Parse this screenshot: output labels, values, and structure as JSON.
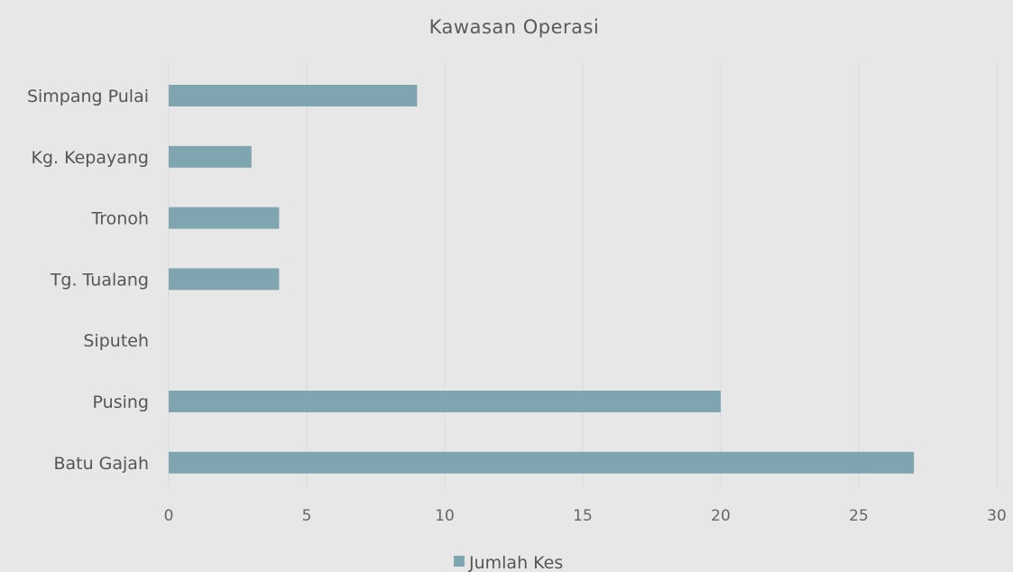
{
  "chart_data": {
    "type": "bar",
    "orientation": "horizontal",
    "title": "Kawasan Operasi",
    "categories": [
      "Simpang Pulai",
      "Kg. Kepayang",
      "Tronoh",
      "Tg. Tualang",
      "Siputeh",
      "Pusing",
      "Batu Gajah"
    ],
    "series": [
      {
        "name": "Jumlah Kes",
        "values": [
          9,
          3,
          4,
          4,
          0,
          20,
          27
        ]
      }
    ],
    "xlim": [
      0,
      30
    ],
    "x_ticks": [
      "0",
      "5",
      "10",
      "15",
      "20",
      "25",
      "30"
    ],
    "grid": true,
    "legend_position": "bottom",
    "bar_color": "#7fa5b0",
    "background_color": "#e7e7e7"
  }
}
